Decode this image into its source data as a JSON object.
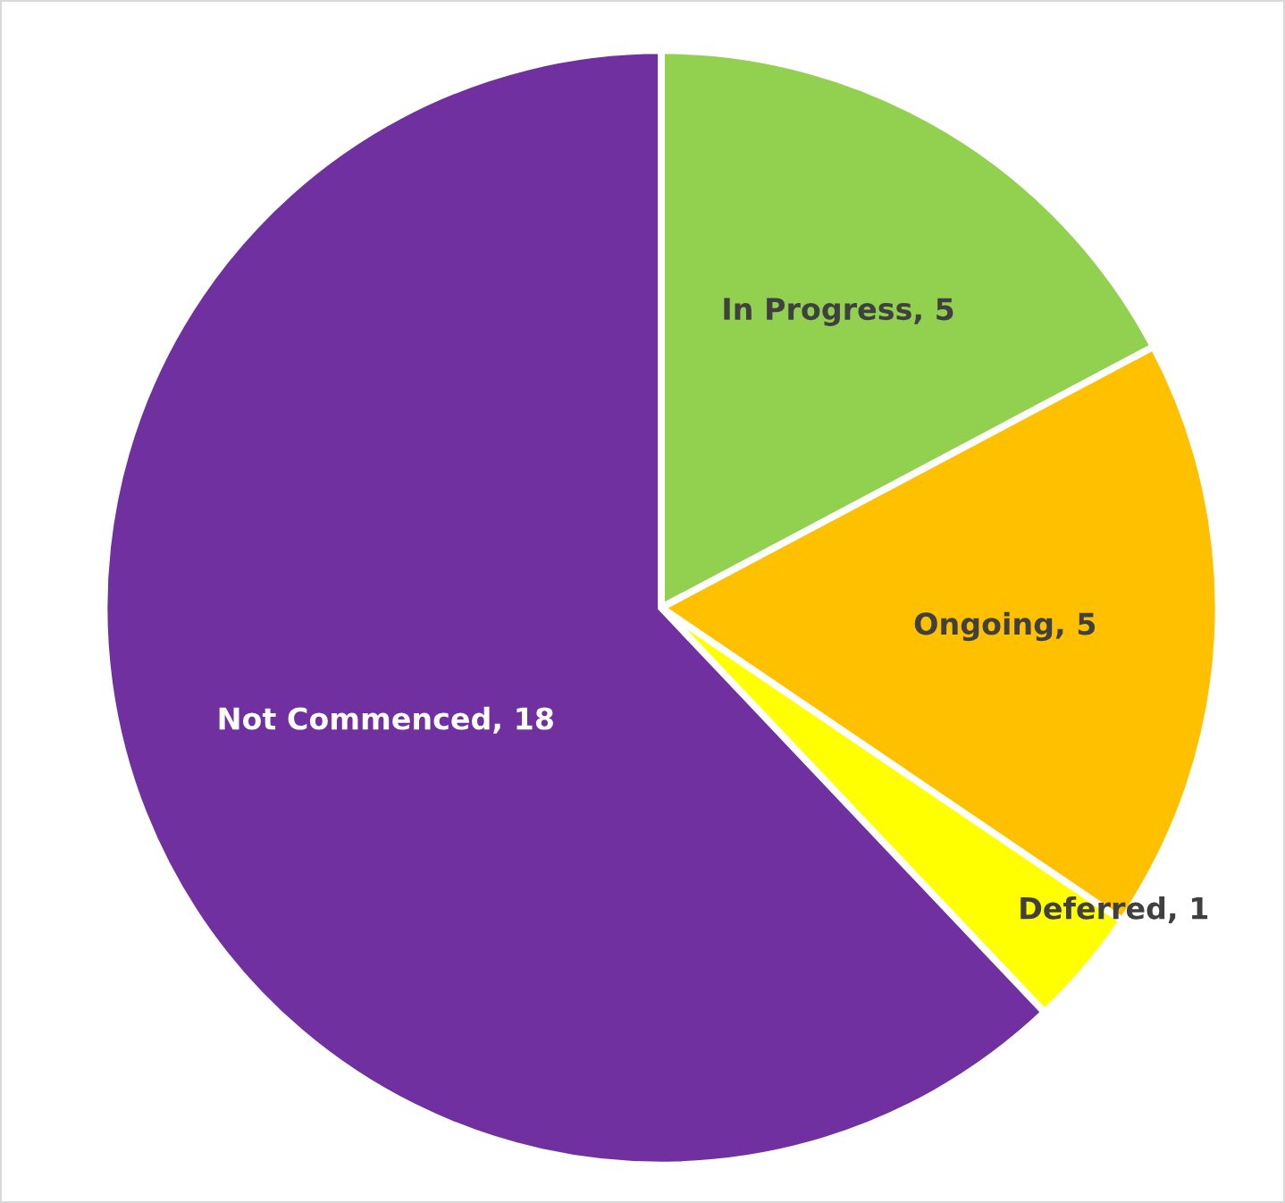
{
  "chart_data": {
    "type": "pie",
    "categories": [
      "In Progress",
      "Ongoing",
      "Deferred",
      "Not Commenced"
    ],
    "values": [
      5,
      5,
      1,
      18
    ],
    "colors": [
      "#92d050",
      "#ffc000",
      "#ffff00",
      "#7030a0"
    ],
    "value_labels": [
      ", 5",
      ", 5",
      ", 1",
      ", 18"
    ],
    "legend": false
  }
}
